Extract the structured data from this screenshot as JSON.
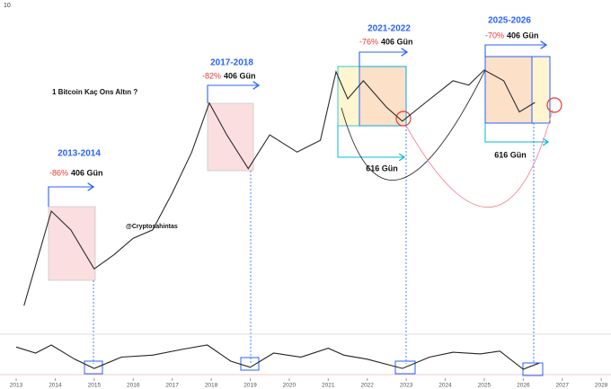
{
  "chart_data": [
    {
      "type": "line",
      "title": "1 Bitcoin Kaç Ons Altın ?",
      "watermark": "@Cryptosahintas",
      "corner_label": "10",
      "log_scale": true,
      "color": "#2b2b2b",
      "x": [
        2013.2,
        2013.9,
        2014.4,
        2015.0,
        2015.5,
        2016.0,
        2016.5,
        2017.0,
        2017.5,
        2017.95,
        2018.4,
        2018.95,
        2019.5,
        2020.2,
        2020.8,
        2021.2,
        2021.5,
        2021.9,
        2022.5,
        2022.9,
        2023.5,
        2024.2,
        2024.6,
        2025.0,
        2025.5,
        2025.9,
        2026.3
      ],
      "values": [
        0.076,
        0.7,
        0.45,
        0.18,
        0.25,
        0.37,
        0.45,
        1.07,
        2.8,
        8.9,
        4.2,
        1.9,
        4.2,
        2.8,
        3.7,
        18.5,
        9.8,
        15,
        8.0,
        5.8,
        9.0,
        15,
        13.5,
        19.3,
        15,
        7.2,
        9.0
      ],
      "xlim": [
        2012.585,
        2028.25
      ],
      "ylim": [
        0.05,
        100
      ],
      "xticks": [
        2013,
        2014,
        2015,
        2016,
        2017,
        2018,
        2019,
        2020,
        2021,
        2022,
        2023,
        2024,
        2025,
        2026,
        2027,
        2028
      ],
      "annotations": [
        {
          "period": "2013-2014",
          "change": "-86%",
          "duration": "406 Gün"
        },
        {
          "period": "2017-2018",
          "change": "-82%",
          "duration": "406 Gün"
        },
        {
          "period": "2021-2022",
          "change": "-76%",
          "duration": "406 Gün"
        },
        {
          "period": "2025-2026",
          "change": "-70%",
          "duration": "406 Gün"
        }
      ],
      "spans": [
        "616 Gün",
        "616 Gün"
      ]
    },
    {
      "type": "line",
      "color": "#222222",
      "xlim": [
        2012.585,
        2028.25
      ],
      "ylim": [
        0,
        1
      ],
      "x": [
        2013.0,
        2013.5,
        2013.9,
        2014.5,
        2015.0,
        2015.7,
        2016.5,
        2017.3,
        2017.9,
        2018.5,
        2019.0,
        2019.6,
        2020.3,
        2021.0,
        2021.4,
        2022.0,
        2022.9,
        2023.6,
        2024.2,
        2024.9,
        2025.4,
        2026.0,
        2026.4
      ],
      "values": [
        0.75,
        0.6,
        0.8,
        0.45,
        0.22,
        0.5,
        0.55,
        0.7,
        0.8,
        0.4,
        0.25,
        0.6,
        0.5,
        0.72,
        0.55,
        0.45,
        0.22,
        0.5,
        0.62,
        0.58,
        0.65,
        0.2,
        0.35
      ]
    }
  ]
}
